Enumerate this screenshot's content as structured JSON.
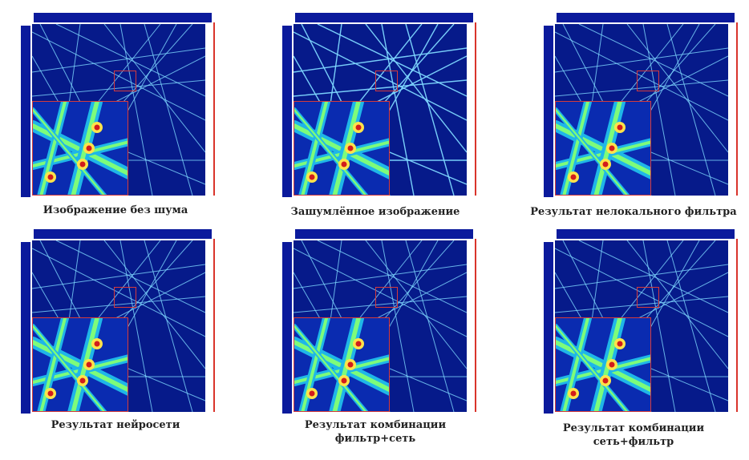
{
  "panels": [
    {
      "caption_lines": [
        "Изображение без шума"
      ]
    },
    {
      "caption_lines": [
        "Зашумлённое изображение"
      ]
    },
    {
      "caption_lines": [
        "Результат нелокального фильтра"
      ]
    },
    {
      "caption_lines": [
        "Результат нейросети"
      ]
    },
    {
      "caption_lines": [
        "Результат комбинации",
        "фильтр+сеть"
      ]
    },
    {
      "caption_lines": [
        "Результат комбинации",
        "сеть+фильтр"
      ]
    }
  ],
  "colors": {
    "background": "#061a8a",
    "line": "#7fd8ff",
    "highlight_box": "#d63b3b",
    "peak": "#d11c1c",
    "halo": "#ffe34a"
  }
}
